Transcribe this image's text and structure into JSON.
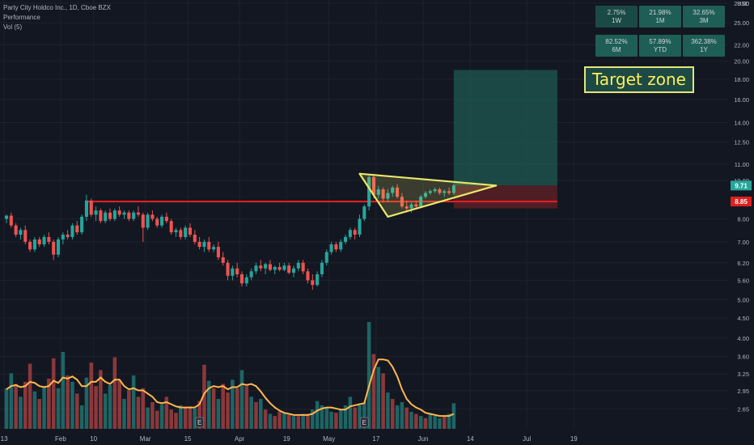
{
  "legend": {
    "symbol_line": "Party City Holdco Inc., 1D, Cboe BZX",
    "indicator_1": "Performance",
    "indicator_2": "Vol (5)"
  },
  "performance": [
    {
      "value": "2.75%",
      "period": "1W"
    },
    {
      "value": "21.98%",
      "period": "1M"
    },
    {
      "value": "32.65%",
      "period": "3M"
    },
    {
      "value": "82.52%",
      "period": "6M"
    },
    {
      "value": "57.89%",
      "period": "YTD"
    },
    {
      "value": "362.38%",
      "period": "1Y"
    }
  ],
  "annotation": {
    "target_label": "Target zone"
  },
  "colors": {
    "background": "#131722",
    "up": "#26a69a",
    "down": "#ef5350",
    "volume_ma": "#ffb74d",
    "resistance": "#e01f1f",
    "triangle": "#e8e86a",
    "target_zone": "#1f5a52",
    "stop_zone": "#5a1f24",
    "price_label_current": "#26a69a",
    "price_label_level": "#e01f1f"
  },
  "chart_data": {
    "type": "candlestick",
    "currency": "USD",
    "y_scale": "log",
    "ylim": [
      2.5,
      28
    ],
    "y_ticks": [
      28.0,
      25.0,
      22.0,
      20.0,
      18.0,
      16.0,
      14.0,
      12.5,
      11.0,
      10.0,
      8.0,
      7.0,
      6.2,
      5.6,
      5.0,
      4.5,
      4.0,
      3.6,
      3.25,
      2.95,
      2.65
    ],
    "x_ticks": [
      {
        "label": "13",
        "index": -0.5
      },
      {
        "label": "Feb",
        "index": 11.5
      },
      {
        "label": "10",
        "index": 18.5
      },
      {
        "label": "Mar",
        "index": 29.5
      },
      {
        "label": "15",
        "index": 38.5
      },
      {
        "label": "Apr",
        "index": 49.5
      },
      {
        "label": "19",
        "index": 59.5
      },
      {
        "label": "May",
        "index": 68.5
      },
      {
        "label": "17",
        "index": 78.5
      },
      {
        "label": "Jun",
        "index": 88.5
      },
      {
        "label": "14",
        "index": 98.5
      },
      {
        "label": "Jul",
        "index": 110.5
      },
      {
        "label": "19",
        "index": 120.5
      }
    ],
    "price_labels": [
      {
        "value": 9.71,
        "text": "9.71",
        "type": "current"
      },
      {
        "value": 8.85,
        "text": "8.85",
        "type": "level"
      }
    ],
    "resistance_level": 8.85,
    "resistance_start_index": 17,
    "target_zone": {
      "from_index": 95,
      "to_index": 117,
      "low": 9.71,
      "high": 19.0
    },
    "stop_zone": {
      "from_index": 95,
      "to_index": 117,
      "low": 8.5,
      "high": 9.71
    },
    "triangle": [
      {
        "index": 75,
        "price": 10.4
      },
      {
        "index": 81,
        "price": 8.1
      },
      {
        "index": 104,
        "price": 9.71
      }
    ],
    "candles": [
      [
        8.0,
        8.2,
        7.8,
        8.15
      ],
      [
        8.15,
        8.3,
        7.6,
        7.7
      ],
      [
        7.7,
        7.8,
        7.2,
        7.3
      ],
      [
        7.3,
        7.6,
        7.1,
        7.5
      ],
      [
        7.5,
        7.7,
        6.9,
        7.0
      ],
      [
        7.0,
        7.1,
        6.6,
        6.7
      ],
      [
        6.7,
        7.2,
        6.6,
        7.1
      ],
      [
        7.1,
        7.2,
        6.8,
        6.9
      ],
      [
        6.9,
        7.3,
        6.8,
        7.2
      ],
      [
        7.2,
        7.4,
        6.9,
        7.0
      ],
      [
        7.0,
        7.1,
        6.3,
        6.5
      ],
      [
        6.5,
        7.2,
        6.4,
        7.1
      ],
      [
        7.1,
        7.4,
        6.9,
        7.3
      ],
      [
        7.3,
        7.5,
        7.1,
        7.2
      ],
      [
        7.2,
        7.8,
        7.1,
        7.7
      ],
      [
        7.7,
        7.9,
        7.3,
        7.4
      ],
      [
        7.4,
        8.2,
        7.3,
        8.1
      ],
      [
        8.1,
        9.2,
        7.9,
        8.9
      ],
      [
        8.9,
        9.0,
        8.1,
        8.2
      ],
      [
        8.2,
        8.6,
        7.9,
        8.4
      ],
      [
        8.4,
        8.5,
        7.8,
        7.9
      ],
      [
        7.9,
        8.4,
        7.8,
        8.3
      ],
      [
        8.3,
        8.5,
        7.9,
        8.0
      ],
      [
        8.0,
        8.5,
        7.9,
        8.4
      ],
      [
        8.4,
        8.6,
        8.1,
        8.2
      ],
      [
        8.2,
        8.4,
        8.0,
        8.3
      ],
      [
        8.3,
        8.4,
        7.9,
        8.0
      ],
      [
        8.0,
        8.4,
        7.9,
        8.3
      ],
      [
        8.3,
        8.6,
        8.1,
        8.2
      ],
      [
        8.2,
        8.3,
        7.0,
        7.6
      ],
      [
        7.6,
        8.3,
        7.5,
        8.2
      ],
      [
        8.2,
        8.4,
        7.9,
        8.0
      ],
      [
        8.0,
        8.1,
        7.6,
        7.7
      ],
      [
        7.7,
        8.2,
        7.6,
        8.1
      ],
      [
        8.1,
        8.3,
        7.8,
        7.9
      ],
      [
        7.9,
        8.0,
        7.3,
        7.4
      ],
      [
        7.4,
        7.6,
        7.2,
        7.5
      ],
      [
        7.5,
        7.6,
        7.1,
        7.2
      ],
      [
        7.2,
        7.7,
        7.1,
        7.6
      ],
      [
        7.6,
        7.8,
        7.2,
        7.3
      ],
      [
        7.3,
        7.5,
        6.9,
        7.0
      ],
      [
        7.0,
        7.2,
        6.7,
        6.8
      ],
      [
        6.8,
        7.1,
        6.6,
        7.0
      ],
      [
        7.0,
        7.2,
        6.6,
        6.7
      ],
      [
        6.7,
        6.9,
        6.6,
        6.8
      ],
      [
        6.8,
        7.0,
        6.3,
        6.4
      ],
      [
        6.4,
        6.6,
        6.1,
        6.2
      ],
      [
        6.2,
        6.3,
        5.6,
        5.75
      ],
      [
        5.75,
        6.1,
        5.6,
        6.0
      ],
      [
        6.0,
        6.2,
        5.7,
        5.8
      ],
      [
        5.8,
        5.9,
        5.4,
        5.5
      ],
      [
        5.5,
        5.8,
        5.4,
        5.7
      ],
      [
        5.7,
        6.0,
        5.6,
        5.9
      ],
      [
        5.9,
        6.2,
        5.8,
        6.1
      ],
      [
        6.1,
        6.3,
        5.9,
        6.0
      ],
      [
        6.0,
        6.2,
        5.8,
        6.15
      ],
      [
        6.15,
        6.3,
        5.9,
        5.95
      ],
      [
        5.95,
        6.1,
        5.8,
        6.05
      ],
      [
        6.05,
        6.2,
        5.9,
        5.95
      ],
      [
        5.95,
        6.2,
        5.9,
        6.1
      ],
      [
        6.1,
        6.2,
        5.8,
        5.85
      ],
      [
        5.85,
        6.1,
        5.7,
        6.0
      ],
      [
        6.0,
        6.3,
        5.9,
        6.2
      ],
      [
        6.2,
        6.3,
        5.8,
        5.9
      ],
      [
        5.9,
        6.0,
        5.5,
        5.6
      ],
      [
        5.6,
        5.8,
        5.3,
        5.45
      ],
      [
        5.45,
        5.9,
        5.4,
        5.8
      ],
      [
        5.8,
        6.3,
        5.7,
        6.2
      ],
      [
        6.2,
        6.7,
        6.1,
        6.6
      ],
      [
        6.6,
        7.0,
        6.5,
        6.9
      ],
      [
        6.9,
        7.0,
        6.6,
        6.7
      ],
      [
        6.7,
        7.1,
        6.6,
        7.0
      ],
      [
        7.0,
        7.3,
        6.9,
        7.2
      ],
      [
        7.2,
        7.6,
        7.1,
        7.5
      ],
      [
        7.5,
        7.6,
        7.1,
        7.3
      ],
      [
        7.3,
        8.2,
        7.2,
        8.0
      ],
      [
        8.0,
        8.7,
        7.9,
        8.6
      ],
      [
        8.6,
        10.3,
        8.4,
        10.2
      ],
      [
        10.2,
        10.4,
        9.0,
        9.2
      ],
      [
        9.2,
        9.7,
        9.0,
        9.5
      ],
      [
        9.5,
        9.6,
        8.8,
        9.0
      ],
      [
        9.0,
        9.5,
        8.8,
        9.3
      ],
      [
        9.3,
        9.7,
        9.1,
        9.6
      ],
      [
        9.6,
        9.8,
        9.0,
        9.1
      ],
      [
        9.1,
        9.3,
        8.5,
        8.6
      ],
      [
        8.6,
        8.9,
        8.3,
        8.5
      ],
      [
        8.5,
        8.8,
        8.3,
        8.7
      ],
      [
        8.7,
        8.9,
        8.5,
        8.6
      ],
      [
        8.6,
        9.2,
        8.5,
        9.1
      ],
      [
        9.1,
        9.4,
        9.0,
        9.3
      ],
      [
        9.3,
        9.5,
        9.2,
        9.4
      ],
      [
        9.4,
        9.6,
        9.3,
        9.5
      ],
      [
        9.5,
        9.6,
        9.2,
        9.3
      ],
      [
        9.3,
        9.5,
        9.1,
        9.4
      ],
      [
        9.4,
        9.6,
        9.2,
        9.3
      ],
      [
        9.3,
        9.8,
        9.2,
        9.71
      ]
    ],
    "volume_ylim": [
      0,
      100
    ],
    "volume": [
      [
        38,
        1
      ],
      [
        52,
        1
      ],
      [
        42,
        0
      ],
      [
        30,
        1
      ],
      [
        44,
        0
      ],
      [
        61,
        0
      ],
      [
        35,
        1
      ],
      [
        28,
        0
      ],
      [
        40,
        1
      ],
      [
        47,
        0
      ],
      [
        66,
        0
      ],
      [
        38,
        1
      ],
      [
        72,
        1
      ],
      [
        50,
        0
      ],
      [
        44,
        1
      ],
      [
        33,
        0
      ],
      [
        22,
        1
      ],
      [
        48,
        1
      ],
      [
        62,
        0
      ],
      [
        40,
        0
      ],
      [
        55,
        0
      ],
      [
        33,
        1
      ],
      [
        41,
        1
      ],
      [
        67,
        0
      ],
      [
        45,
        0
      ],
      [
        28,
        1
      ],
      [
        36,
        0
      ],
      [
        50,
        1
      ],
      [
        30,
        0
      ],
      [
        38,
        0
      ],
      [
        20,
        1
      ],
      [
        25,
        0
      ],
      [
        17,
        0
      ],
      [
        23,
        1
      ],
      [
        30,
        0
      ],
      [
        18,
        0
      ],
      [
        15,
        0
      ],
      [
        22,
        1
      ],
      [
        20,
        0
      ],
      [
        21,
        0
      ],
      [
        19,
        1
      ],
      [
        26,
        0
      ],
      [
        60,
        0
      ],
      [
        45,
        1
      ],
      [
        38,
        0
      ],
      [
        28,
        1
      ],
      [
        42,
        0
      ],
      [
        34,
        0
      ],
      [
        46,
        1
      ],
      [
        38,
        0
      ],
      [
        55,
        1
      ],
      [
        40,
        0
      ],
      [
        30,
        1
      ],
      [
        25,
        0
      ],
      [
        28,
        1
      ],
      [
        18,
        0
      ],
      [
        14,
        1
      ],
      [
        12,
        0
      ],
      [
        16,
        0
      ],
      [
        15,
        1
      ],
      [
        13,
        0
      ],
      [
        12,
        1
      ],
      [
        12,
        0
      ],
      [
        14,
        1
      ],
      [
        14,
        0
      ],
      [
        18,
        1
      ],
      [
        26,
        1
      ],
      [
        22,
        1
      ],
      [
        20,
        1
      ],
      [
        16,
        1
      ],
      [
        15,
        0
      ],
      [
        18,
        1
      ],
      [
        22,
        1
      ],
      [
        30,
        1
      ],
      [
        20,
        0
      ],
      [
        22,
        1
      ],
      [
        25,
        1
      ],
      [
        100,
        1
      ],
      [
        70,
        0
      ],
      [
        58,
        1
      ],
      [
        52,
        0
      ],
      [
        34,
        1
      ],
      [
        28,
        0
      ],
      [
        22,
        1
      ],
      [
        25,
        1
      ],
      [
        20,
        0
      ],
      [
        16,
        1
      ],
      [
        14,
        0
      ],
      [
        12,
        1
      ],
      [
        10,
        0
      ],
      [
        14,
        1
      ],
      [
        12,
        1
      ],
      [
        10,
        1
      ],
      [
        12,
        0
      ],
      [
        14,
        1
      ],
      [
        24,
        1
      ]
    ],
    "volume_ma": [
      37,
      40,
      41,
      39,
      40,
      44,
      43,
      40,
      39,
      40,
      45,
      43,
      48,
      47,
      49,
      46,
      40,
      40,
      44,
      44,
      48,
      44,
      42,
      46,
      46,
      40,
      37,
      38,
      36,
      36,
      33,
      30,
      25,
      24,
      25,
      23,
      21,
      20,
      20,
      20,
      20,
      23,
      33,
      38,
      40,
      39,
      40,
      37,
      39,
      39,
      42,
      41,
      42,
      40,
      35,
      29,
      24,
      20,
      17,
      15,
      14,
      13,
      13,
      13,
      13,
      14,
      17,
      19,
      20,
      20,
      19,
      18,
      18,
      21,
      22,
      23,
      24,
      40,
      55,
      65,
      65,
      64,
      58,
      49,
      37,
      28,
      23,
      20,
      18,
      15,
      14,
      13,
      12,
      12,
      12,
      14
    ],
    "event_markers": [
      {
        "index": 41,
        "label": "E"
      },
      {
        "index": 76,
        "label": "E"
      }
    ]
  }
}
